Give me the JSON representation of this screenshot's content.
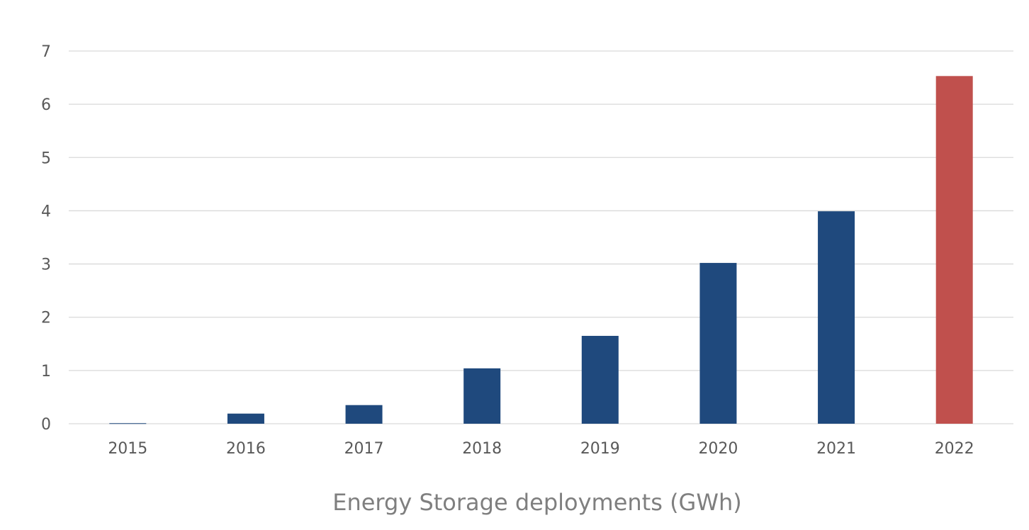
{
  "chart_data": {
    "type": "bar",
    "title": "",
    "xlabel": "Energy Storage deployments (GWh)",
    "ylabel": "",
    "categories": [
      "2015",
      "2016",
      "2017",
      "2018",
      "2019",
      "2020",
      "2021",
      "2022"
    ],
    "values": [
      0.01,
      0.19,
      0.35,
      1.04,
      1.65,
      3.02,
      3.99,
      6.53
    ],
    "ylim": [
      0,
      7
    ],
    "yticks": [
      "0",
      "1",
      "2",
      "3",
      "4",
      "5",
      "6",
      "7"
    ],
    "grid": true,
    "colors": {
      "bar": "#1f497d",
      "highlight": "#c0504d",
      "grid": "#d9d9d9"
    },
    "highlight_category": "2022"
  }
}
